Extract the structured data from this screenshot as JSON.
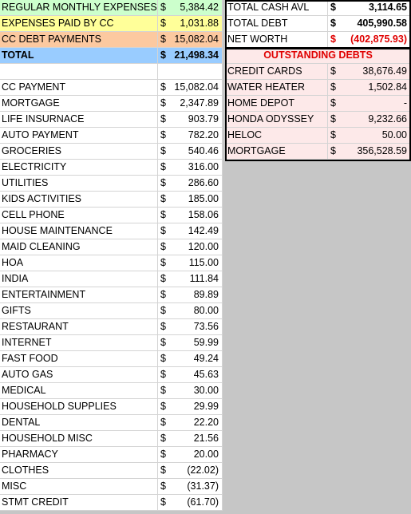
{
  "summary": [
    {
      "label": "REGULAR MONTHLY EXPENSES",
      "dollar": "$",
      "value": "5,384.42",
      "color": "c-green",
      "bold": false
    },
    {
      "label": "EXPENSES PAID BY CC",
      "dollar": "$",
      "value": "1,031.88",
      "color": "c-yellow",
      "bold": false
    },
    {
      "label": "CC DEBT PAYMENTS",
      "dollar": "$",
      "value": "15,082.04",
      "color": "c-orange",
      "bold": false
    },
    {
      "label": "TOTAL",
      "dollar": "$",
      "value": "21,498.34",
      "color": "c-blue",
      "bold": true
    }
  ],
  "expenses": [
    {
      "label": "CC PAYMENT",
      "dollar": "$",
      "value": "15,082.04"
    },
    {
      "label": "MORTGAGE",
      "dollar": "$",
      "value": "2,347.89"
    },
    {
      "label": "LIFE INSURNACE",
      "dollar": "$",
      "value": "903.79"
    },
    {
      "label": "AUTO PAYMENT",
      "dollar": "$",
      "value": "782.20"
    },
    {
      "label": "GROCERIES",
      "dollar": "$",
      "value": "540.46"
    },
    {
      "label": "ELECTRICITY",
      "dollar": "$",
      "value": "316.00"
    },
    {
      "label": "UTILITIES",
      "dollar": "$",
      "value": "286.60"
    },
    {
      "label": "KIDS ACTIVITIES",
      "dollar": "$",
      "value": "185.00"
    },
    {
      "label": "CELL PHONE",
      "dollar": "$",
      "value": "158.06"
    },
    {
      "label": "HOUSE MAINTENANCE",
      "dollar": "$",
      "value": "142.49"
    },
    {
      "label": "MAID CLEANING",
      "dollar": "$",
      "value": "120.00"
    },
    {
      "label": "HOA",
      "dollar": "$",
      "value": "115.00"
    },
    {
      "label": "INDIA",
      "dollar": "$",
      "value": "111.84"
    },
    {
      "label": "ENTERTAINMENT",
      "dollar": "$",
      "value": "89.89"
    },
    {
      "label": "GIFTS",
      "dollar": "$",
      "value": "80.00"
    },
    {
      "label": "RESTAURANT",
      "dollar": "$",
      "value": "73.56"
    },
    {
      "label": "INTERNET",
      "dollar": "$",
      "value": "59.99"
    },
    {
      "label": "FAST FOOD",
      "dollar": "$",
      "value": "49.24"
    },
    {
      "label": "AUTO GAS",
      "dollar": "$",
      "value": "45.63"
    },
    {
      "label": "MEDICAL",
      "dollar": "$",
      "value": "30.00"
    },
    {
      "label": "HOUSEHOLD SUPPLIES",
      "dollar": "$",
      "value": "29.99"
    },
    {
      "label": "DENTAL",
      "dollar": "$",
      "value": "22.20"
    },
    {
      "label": "HOUSEHOLD MISC",
      "dollar": "$",
      "value": "21.56"
    },
    {
      "label": "PHARMACY",
      "dollar": "$",
      "value": "20.00"
    },
    {
      "label": "CLOTHES",
      "dollar": "$",
      "value": "(22.02)"
    },
    {
      "label": "MISC",
      "dollar": "$",
      "value": "(31.37)"
    },
    {
      "label": "STMT CREDIT",
      "dollar": "$",
      "value": "(61.70)"
    }
  ],
  "totals": [
    {
      "label": "TOTAL CASH AVL",
      "dollar": "$",
      "value": "3,114.65",
      "red": false
    },
    {
      "label": "TOTAL DEBT",
      "dollar": "$",
      "value": "405,990.58",
      "red": false
    },
    {
      "label": "NET WORTH",
      "dollar": "$",
      "value": "(402,875.93)",
      "red": true
    }
  ],
  "debts": {
    "header": "OUTSTANDING DEBTS",
    "items": [
      {
        "label": "CREDIT CARDS",
        "dollar": "$",
        "value": "38,676.49"
      },
      {
        "label": "WATER HEATER",
        "dollar": "$",
        "value": "1,502.84"
      },
      {
        "label": "HOME DEPOT",
        "dollar": "$",
        "value": "-"
      },
      {
        "label": "HONDA ODYSSEY",
        "dollar": "$",
        "value": "9,232.66"
      },
      {
        "label": "HELOC",
        "dollar": "$",
        "value": "50.00"
      },
      {
        "label": "MORTGAGE",
        "dollar": "$",
        "value": "356,528.59"
      }
    ]
  },
  "colors": {
    "green": "#ccffcc",
    "yellow": "#ffff99",
    "orange": "#fcc9a0",
    "blue": "#99ccff",
    "pink": "#fde9e9",
    "red": "#e00000",
    "background": "#c6c6c6"
  }
}
